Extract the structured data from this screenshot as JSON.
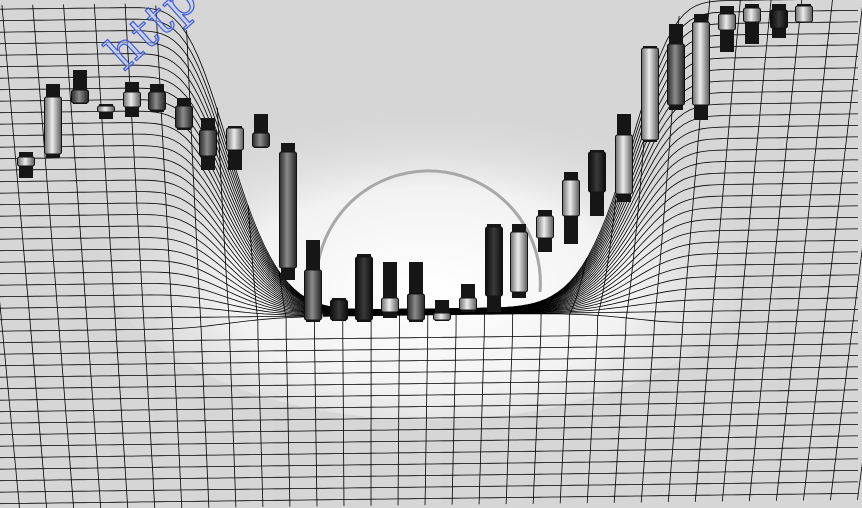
{
  "watermark": {
    "text": "http://ww"
  },
  "colors": {
    "background": "#d6d6d6",
    "grid_line": "#000000",
    "bowl_highlight": "#ffffff",
    "ring": "#a8a8a8",
    "candle_dark": "#1c1c1c",
    "candle_mid": "#555555",
    "candle_light": "#b0b0b0"
  }
}
